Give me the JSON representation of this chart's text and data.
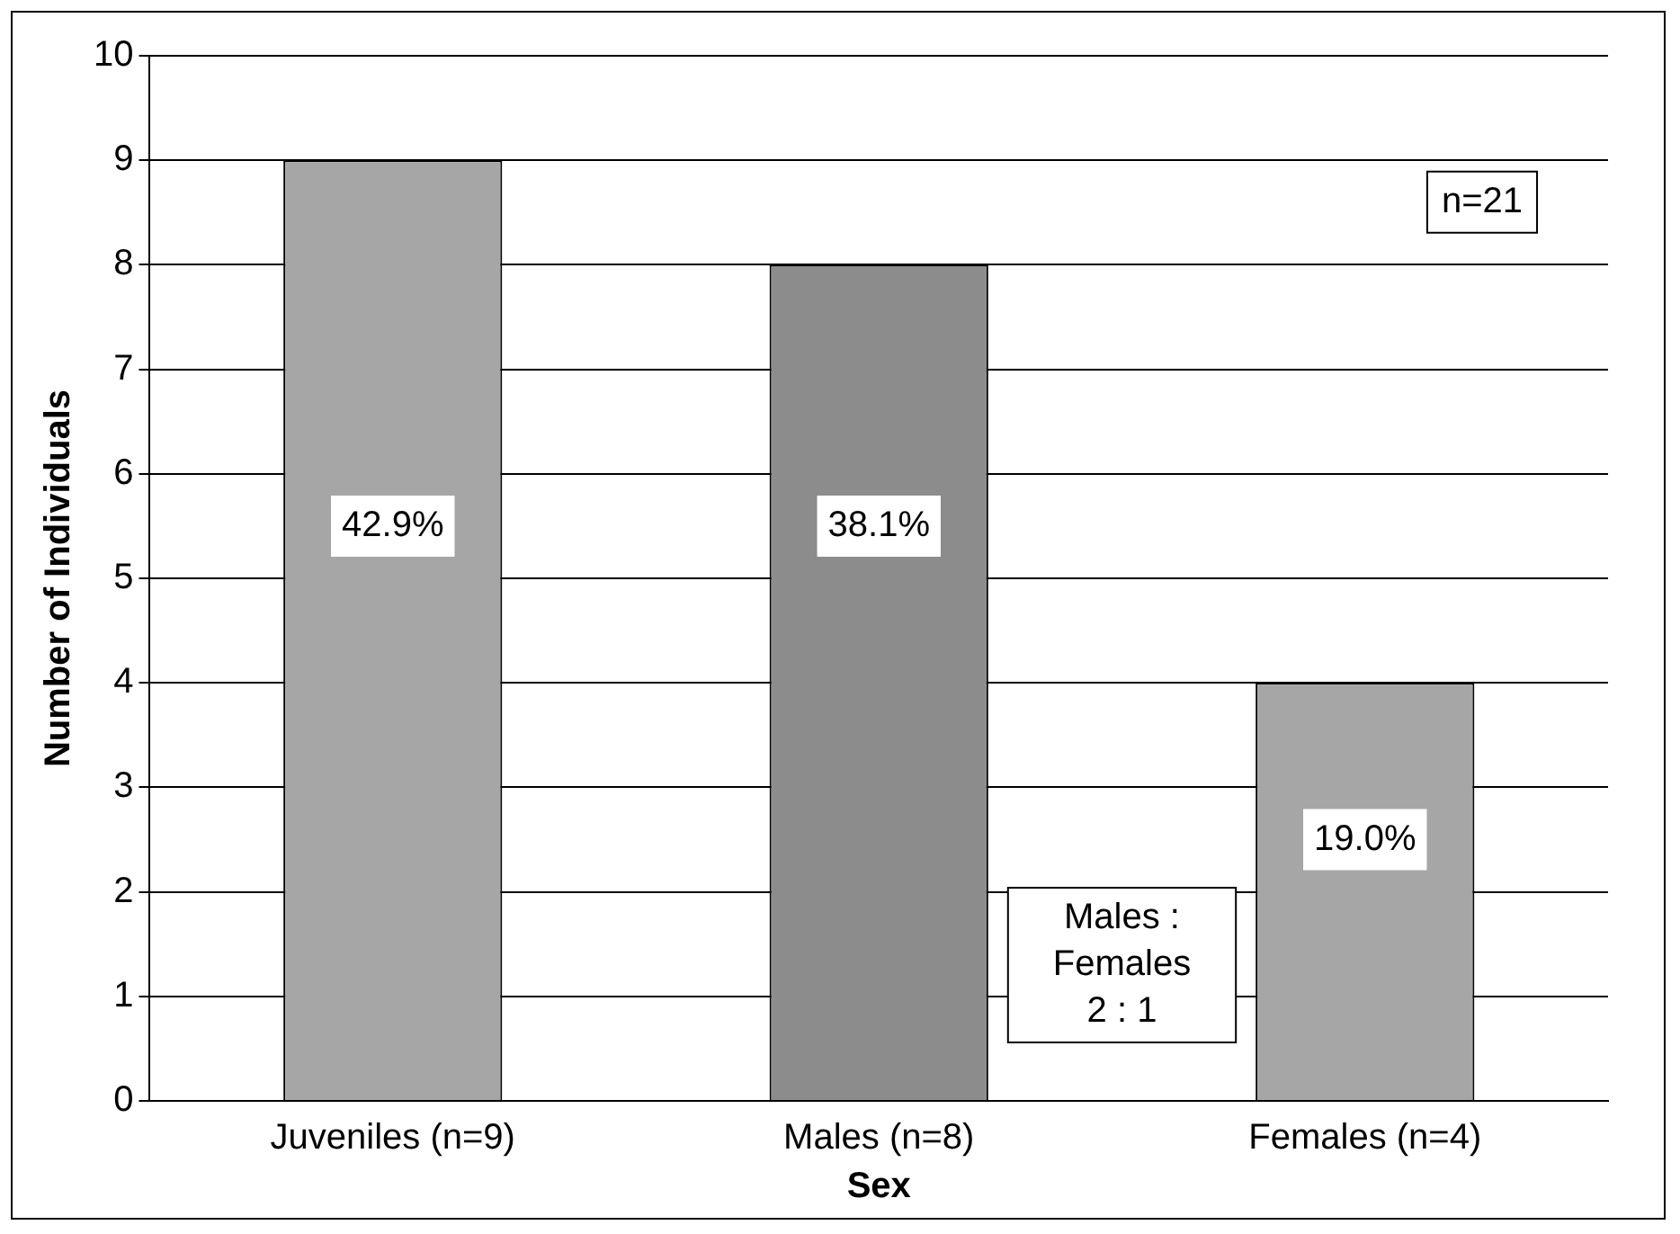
{
  "chart_data": {
    "type": "bar",
    "xlabel": "Sex",
    "ylabel": "Number of Individuals",
    "categories": [
      "Juveniles (n=9)",
      "Males (n=8)",
      "Females (n=4)"
    ],
    "values": [
      9,
      8,
      4
    ],
    "colors": [
      "#a6a6a6",
      "#8c8c8c",
      "#a6a6a6"
    ],
    "annotations": [
      "42.9%",
      "38.1%",
      "19.0%",
      "n=21",
      "Males :\nFemales\n2 : 1"
    ],
    "ylim": [
      0,
      10
    ],
    "yticks": [
      0,
      1,
      2,
      3,
      4,
      5,
      6,
      7,
      8,
      9,
      10
    ],
    "grid": "y",
    "legend": false
  }
}
